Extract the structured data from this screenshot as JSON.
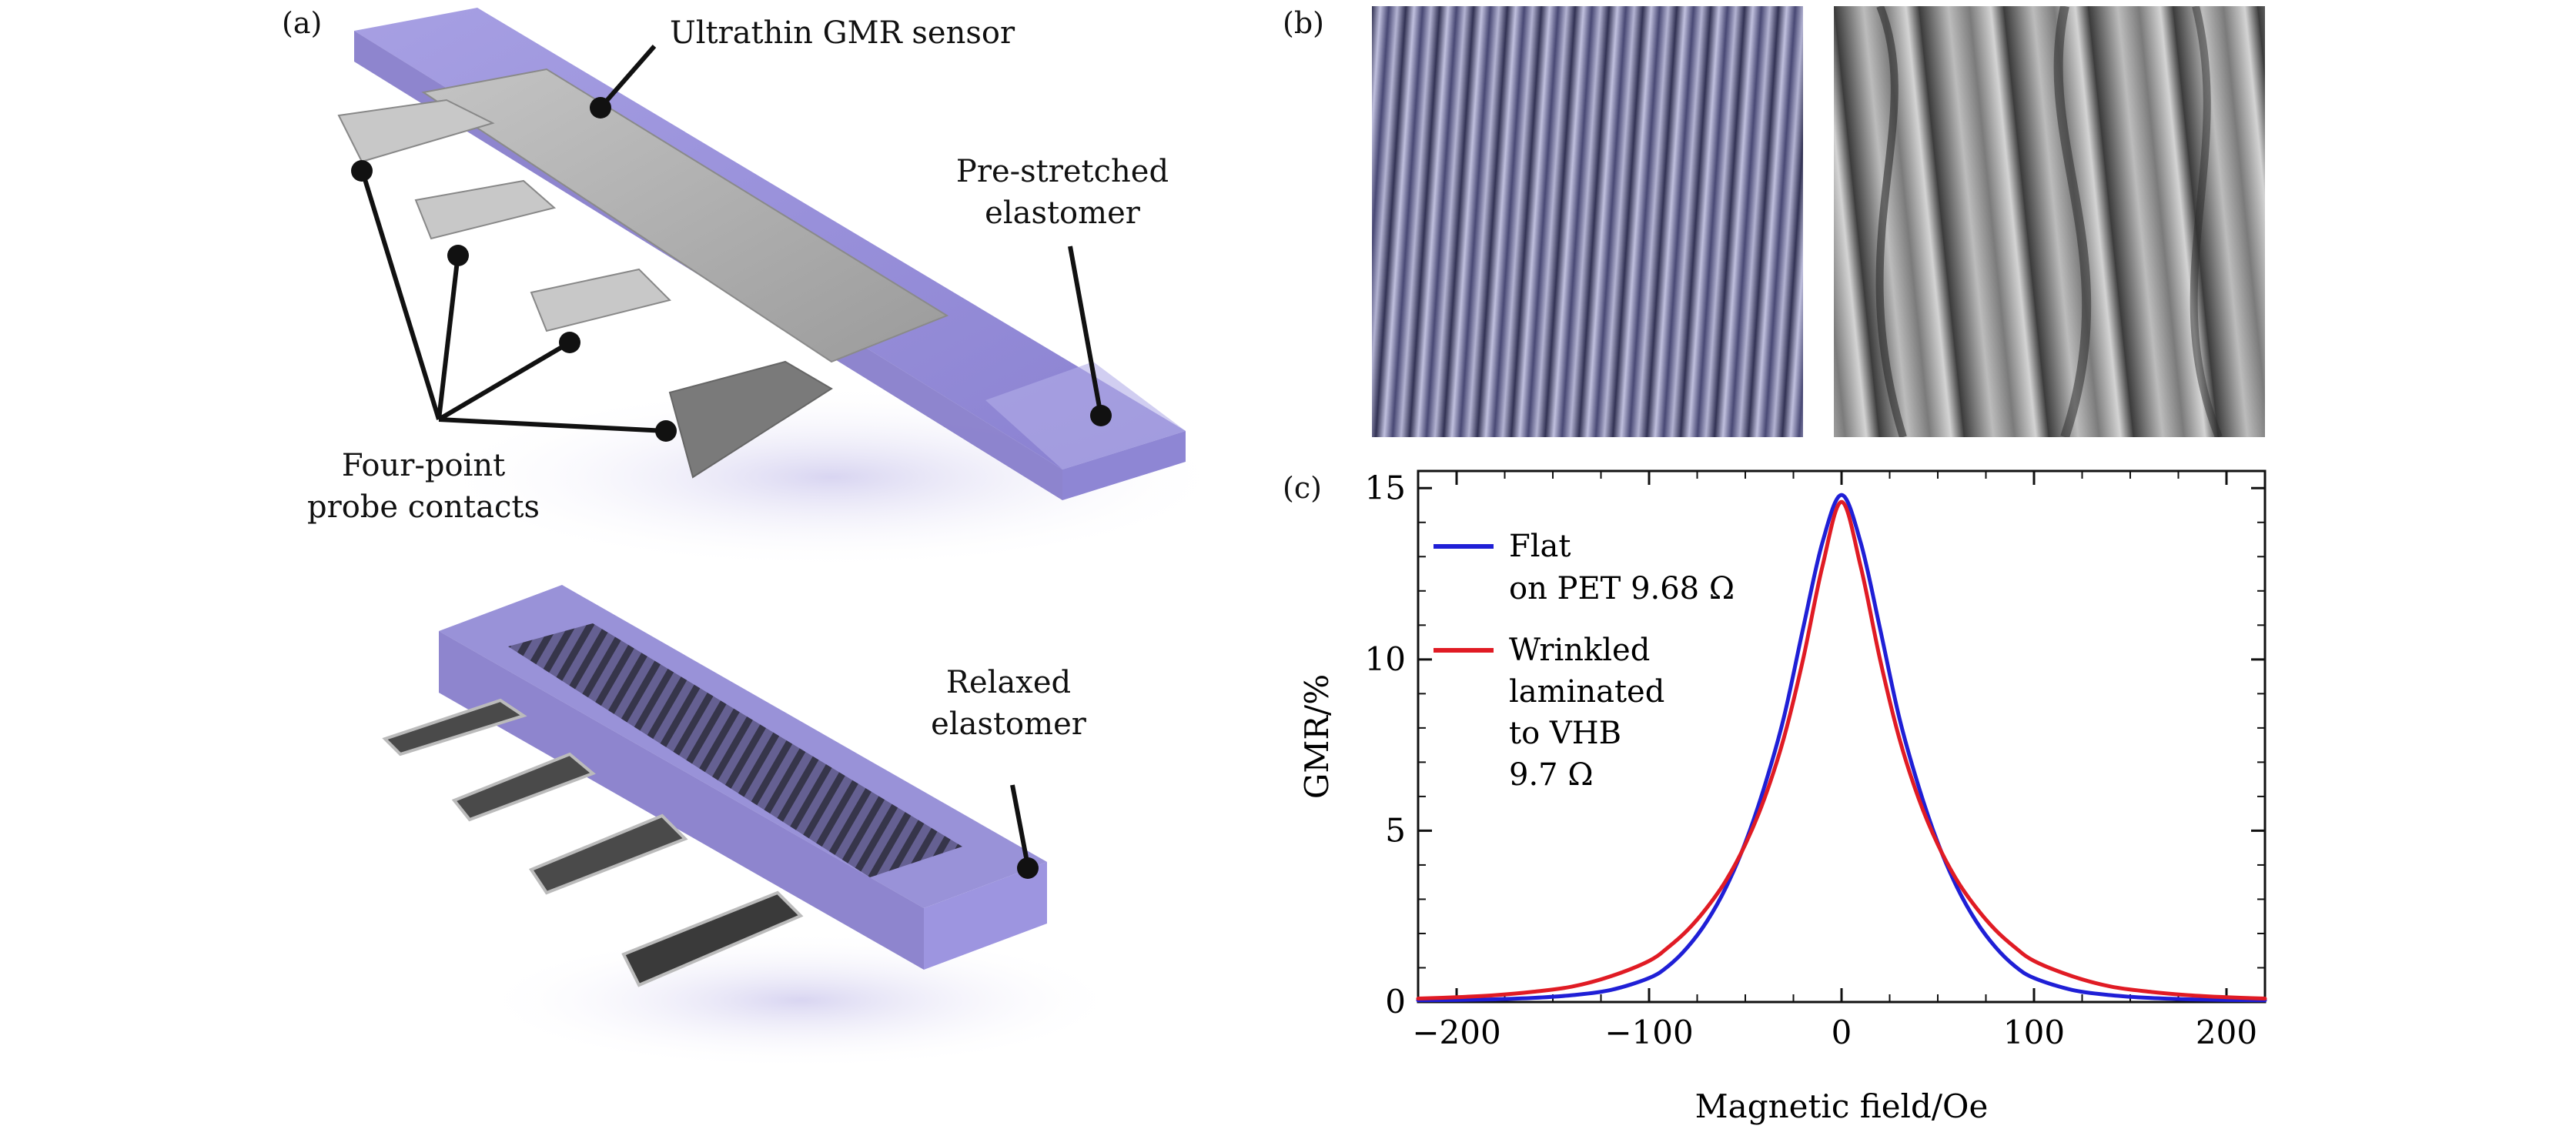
{
  "panels": {
    "a": "(a)",
    "b": "(b)",
    "c": "(c)"
  },
  "panel_a": {
    "callouts": {
      "sensor": "Ultrathin GMR sensor",
      "prestretched_line1": "Pre-stretched",
      "prestretched_line2": "elastomer",
      "contacts_line1": "Four-point",
      "contacts_line2": "probe contacts",
      "relaxed_line1": "Relaxed",
      "relaxed_line2": "elastomer"
    }
  },
  "panel_b": {
    "left_image": "optical photograph of wrinkled sensor",
    "right_image": "SEM micrograph of wrinkles"
  },
  "colors": {
    "elastomer": "#8f86d6",
    "elastomer_dark": "#6f66c4",
    "metal": "#a8a8a8",
    "flat_series": "#1f1fd6",
    "wrinkled_series": "#e01b24"
  },
  "chart_data": {
    "type": "line",
    "title": "",
    "xlabel": "Magnetic field/Oe",
    "ylabel": "GMR/%",
    "xlim": [
      -220,
      220
    ],
    "ylim": [
      0,
      15.5
    ],
    "xticks": [
      -200,
      -100,
      0,
      100,
      200
    ],
    "xtick_labels": [
      "−200",
      "−100",
      "0",
      "100",
      "200"
    ],
    "yticks": [
      0,
      5,
      10,
      15
    ],
    "ytick_labels": [
      "0",
      "5",
      "10",
      "15"
    ],
    "legend_position": "top-left",
    "series": [
      {
        "name": "Flat on PET 9.68 Ω",
        "legend_lines": [
          "Flat",
          "on PET 9.68 Ω"
        ],
        "color": "#1f1fd6",
        "x": [
          -220,
          -200,
          -180,
          -160,
          -140,
          -120,
          -100,
          -90,
          -80,
          -70,
          -60,
          -50,
          -40,
          -30,
          -20,
          -10,
          0,
          10,
          20,
          30,
          40,
          50,
          60,
          70,
          80,
          90,
          100,
          120,
          140,
          160,
          180,
          200,
          220
        ],
        "y": [
          0.05,
          0.06,
          0.08,
          0.12,
          0.2,
          0.35,
          0.7,
          1.05,
          1.6,
          2.35,
          3.35,
          4.65,
          6.3,
          8.3,
          10.9,
          13.4,
          14.8,
          13.4,
          10.9,
          8.3,
          6.3,
          4.65,
          3.35,
          2.35,
          1.6,
          1.05,
          0.7,
          0.35,
          0.2,
          0.12,
          0.08,
          0.06,
          0.05
        ]
      },
      {
        "name": "Wrinkled laminated to VHB 9.7 Ω",
        "legend_lines": [
          "Wrinkled",
          "laminated",
          "to VHB",
          "9.7 Ω"
        ],
        "color": "#e01b24",
        "x": [
          -220,
          -200,
          -180,
          -160,
          -140,
          -120,
          -100,
          -90,
          -80,
          -70,
          -60,
          -50,
          -40,
          -30,
          -20,
          -10,
          0,
          10,
          20,
          30,
          40,
          50,
          60,
          70,
          80,
          90,
          100,
          120,
          140,
          160,
          180,
          200,
          220
        ],
        "y": [
          0.1,
          0.14,
          0.2,
          0.3,
          0.45,
          0.75,
          1.2,
          1.6,
          2.1,
          2.75,
          3.55,
          4.6,
          5.95,
          7.7,
          10.0,
          12.7,
          14.6,
          12.7,
          10.0,
          7.7,
          5.95,
          4.6,
          3.55,
          2.75,
          2.1,
          1.6,
          1.2,
          0.75,
          0.45,
          0.3,
          0.2,
          0.14,
          0.1
        ]
      }
    ]
  }
}
